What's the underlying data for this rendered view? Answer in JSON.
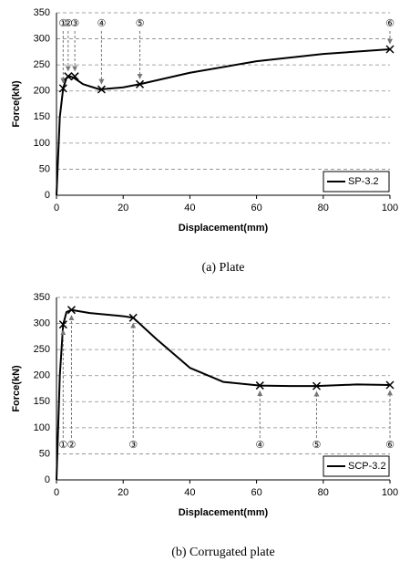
{
  "chart_data": [
    {
      "type": "line",
      "caption": "(a)  Plate",
      "xlabel": "Displacement(mm)",
      "ylabel": "Force(kN)",
      "x": [
        0,
        1,
        2,
        3,
        4,
        5,
        8,
        13,
        20,
        25,
        40,
        60,
        80,
        100
      ],
      "series": [
        {
          "name": "SP-3.2",
          "color": "#000000",
          "values": [
            0,
            150,
            205,
            225,
            228,
            226,
            213,
            203,
            207,
            213,
            235,
            257,
            271,
            280
          ]
        }
      ],
      "annotations": [
        {
          "label": "①",
          "x": 2,
          "y": 205
        },
        {
          "label": "②",
          "x": 3.5,
          "y": 228
        },
        {
          "label": "③",
          "x": 5.5,
          "y": 228
        },
        {
          "label": "④",
          "x": 13.5,
          "y": 203
        },
        {
          "label": "⑤",
          "x": 25,
          "y": 213
        },
        {
          "label": "⑥",
          "x": 100,
          "y": 280
        }
      ],
      "annotation_position": "top",
      "xlim": [
        0,
        100
      ],
      "xticks": [
        0,
        20,
        40,
        60,
        80,
        100
      ],
      "ylim": [
        0,
        350
      ],
      "yticks": [
        0,
        50,
        100,
        150,
        200,
        250,
        300,
        350
      ],
      "grid": true,
      "legend": "lower right"
    },
    {
      "type": "line",
      "caption": "(b)  Corrugated plate",
      "xlabel": "Displacement(mm)",
      "ylabel": "Force(kN)",
      "x": [
        0,
        1,
        2,
        3,
        4.5,
        10,
        20,
        23,
        30,
        40,
        50,
        61,
        70,
        78,
        90,
        100
      ],
      "series": [
        {
          "name": "SCP-3.2",
          "color": "#000000",
          "values": [
            0,
            200,
            298,
            322,
            326,
            320,
            314,
            311,
            270,
            215,
            188,
            181,
            180,
            180,
            183,
            182
          ]
        }
      ],
      "annotations": [
        {
          "label": "①",
          "x": 2,
          "y": 298
        },
        {
          "label": "②",
          "x": 4.5,
          "y": 326
        },
        {
          "label": "③",
          "x": 23,
          "y": 311
        },
        {
          "label": "④",
          "x": 61,
          "y": 181
        },
        {
          "label": "⑤",
          "x": 78,
          "y": 180
        },
        {
          "label": "⑥",
          "x": 100,
          "y": 182
        }
      ],
      "annotation_position": "bottom",
      "xlim": [
        0,
        100
      ],
      "xticks": [
        0,
        20,
        40,
        60,
        80,
        100
      ],
      "ylim": [
        0,
        350
      ],
      "yticks": [
        0,
        50,
        100,
        150,
        200,
        250,
        300,
        350
      ],
      "grid": true,
      "legend": "lower right"
    }
  ]
}
